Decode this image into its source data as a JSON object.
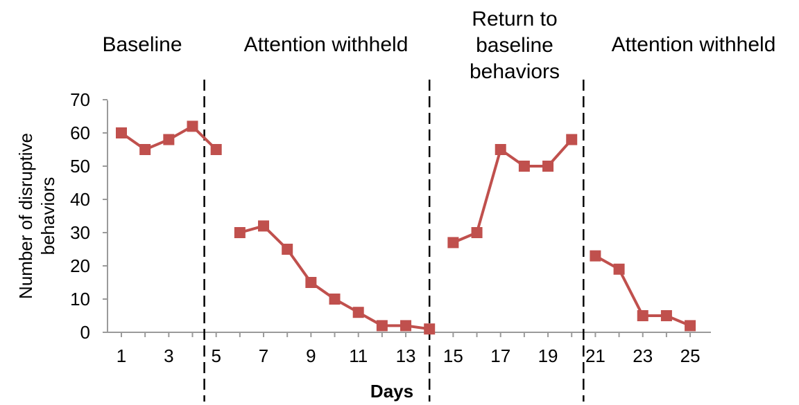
{
  "chart_data": {
    "type": "line",
    "xlabel": "Days",
    "ylabel": [
      "Number of disruptive",
      "behaviors"
    ],
    "ylim": [
      0,
      70
    ],
    "xlim": [
      1,
      25
    ],
    "yticks": [
      0,
      10,
      20,
      30,
      40,
      50,
      60,
      70
    ],
    "xticks": [
      1,
      3,
      5,
      7,
      9,
      11,
      13,
      15,
      17,
      19,
      21,
      23,
      25
    ],
    "grid": false,
    "legend": "none",
    "line_color": "#c0504d",
    "phase_lines_at": [
      4.5,
      14.0,
      20.5
    ],
    "phases": [
      {
        "label": [
          "Baseline"
        ]
      },
      {
        "label": [
          "Attention withheld"
        ]
      },
      {
        "label": [
          "Return to",
          "baseline",
          "behaviors"
        ]
      },
      {
        "label": [
          "Attention withheld"
        ]
      }
    ],
    "segments": [
      {
        "x": [
          1,
          2,
          3,
          4,
          5
        ],
        "y": [
          60,
          55,
          58,
          62,
          55
        ]
      },
      {
        "x": [
          6,
          7,
          8,
          9,
          10,
          11,
          12,
          13,
          14
        ],
        "y": [
          30,
          32,
          25,
          15,
          10,
          6,
          2,
          2,
          1
        ]
      },
      {
        "x": [
          15,
          16,
          17,
          18,
          19,
          20
        ],
        "y": [
          27,
          30,
          55,
          50,
          50,
          58
        ]
      },
      {
        "x": [
          21,
          22,
          23,
          24,
          25
        ],
        "y": [
          23,
          19,
          5,
          5,
          2
        ]
      }
    ]
  }
}
